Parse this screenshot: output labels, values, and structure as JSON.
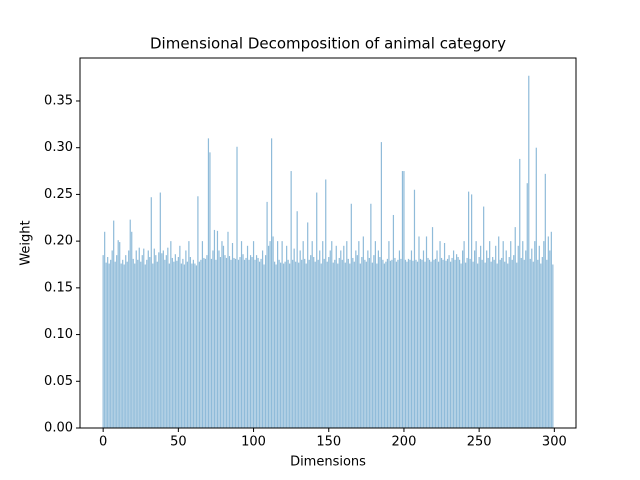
{
  "chart_data": {
    "type": "bar",
    "title": "Dimensional Decomposition of animal category",
    "xlabel": "Dimensions",
    "ylabel": "Weight",
    "color": "#8fbbd9",
    "bar_width": 0.8,
    "x": [
      0,
      1,
      2,
      3,
      4,
      5,
      6,
      7,
      8,
      9,
      10,
      11,
      12,
      13,
      14,
      15,
      16,
      17,
      18,
      19,
      20,
      21,
      22,
      23,
      24,
      25,
      26,
      27,
      28,
      29,
      30,
      31,
      32,
      33,
      34,
      35,
      36,
      37,
      38,
      39,
      40,
      41,
      42,
      43,
      44,
      45,
      46,
      47,
      48,
      49,
      50,
      51,
      52,
      53,
      54,
      55,
      56,
      57,
      58,
      59,
      60,
      61,
      62,
      63,
      64,
      65,
      66,
      67,
      68,
      69,
      70,
      71,
      72,
      73,
      74,
      75,
      76,
      77,
      78,
      79,
      80,
      81,
      82,
      83,
      84,
      85,
      86,
      87,
      88,
      89,
      90,
      91,
      92,
      93,
      94,
      95,
      96,
      97,
      98,
      99,
      100,
      101,
      102,
      103,
      104,
      105,
      106,
      107,
      108,
      109,
      110,
      111,
      112,
      113,
      114,
      115,
      116,
      117,
      118,
      119,
      120,
      121,
      122,
      123,
      124,
      125,
      126,
      127,
      128,
      129,
      130,
      131,
      132,
      133,
      134,
      135,
      136,
      137,
      138,
      139,
      140,
      141,
      142,
      143,
      144,
      145,
      146,
      147,
      148,
      149,
      150,
      151,
      152,
      153,
      154,
      155,
      156,
      157,
      158,
      159,
      160,
      161,
      162,
      163,
      164,
      165,
      166,
      167,
      168,
      169,
      170,
      171,
      172,
      173,
      174,
      175,
      176,
      177,
      178,
      179,
      180,
      181,
      182,
      183,
      184,
      185,
      186,
      187,
      188,
      189,
      190,
      191,
      192,
      193,
      194,
      195,
      196,
      197,
      198,
      199,
      200,
      201,
      202,
      203,
      204,
      205,
      206,
      207,
      208,
      209,
      210,
      211,
      212,
      213,
      214,
      215,
      216,
      217,
      218,
      219,
      220,
      221,
      222,
      223,
      224,
      225,
      226,
      227,
      228,
      229,
      230,
      231,
      232,
      233,
      234,
      235,
      236,
      237,
      238,
      239,
      240,
      241,
      242,
      243,
      244,
      245,
      246,
      247,
      248,
      249,
      250,
      251,
      252,
      253,
      254,
      255,
      256,
      257,
      258,
      259,
      260,
      261,
      262,
      263,
      264,
      265,
      266,
      267,
      268,
      269,
      270,
      271,
      272,
      273,
      274,
      275,
      276,
      277,
      278,
      279,
      280,
      281,
      282,
      283,
      284,
      285,
      286,
      287,
      288,
      289,
      290,
      291,
      292,
      293,
      294,
      295,
      296,
      297,
      298,
      299
    ],
    "values": [
      0.185,
      0.21,
      0.177,
      0.183,
      0.176,
      0.18,
      0.19,
      0.222,
      0.178,
      0.185,
      0.201,
      0.199,
      0.176,
      0.18,
      0.175,
      0.185,
      0.178,
      0.19,
      0.223,
      0.21,
      0.181,
      0.176,
      0.19,
      0.18,
      0.193,
      0.178,
      0.185,
      0.192,
      0.175,
      0.18,
      0.19,
      0.183,
      0.247,
      0.176,
      0.192,
      0.185,
      0.178,
      0.188,
      0.252,
      0.187,
      0.19,
      0.18,
      0.185,
      0.193,
      0.176,
      0.2,
      0.182,
      0.178,
      0.186,
      0.179,
      0.183,
      0.195,
      0.176,
      0.181,
      0.175,
      0.19,
      0.178,
      0.2,
      0.183,
      0.176,
      0.18,
      0.176,
      0.174,
      0.248,
      0.178,
      0.18,
      0.2,
      0.182,
      0.181,
      0.185,
      0.31,
      0.295,
      0.181,
      0.19,
      0.212,
      0.18,
      0.211,
      0.19,
      0.183,
      0.2,
      0.195,
      0.185,
      0.182,
      0.21,
      0.184,
      0.18,
      0.198,
      0.182,
      0.181,
      0.301,
      0.18,
      0.183,
      0.2,
      0.186,
      0.18,
      0.182,
      0.195,
      0.18,
      0.185,
      0.183,
      0.2,
      0.18,
      0.185,
      0.182,
      0.178,
      0.181,
      0.19,
      0.175,
      0.185,
      0.242,
      0.195,
      0.2,
      0.31,
      0.205,
      0.178,
      0.175,
      0.2,
      0.18,
      0.177,
      0.2,
      0.176,
      0.178,
      0.195,
      0.18,
      0.176,
      0.275,
      0.18,
      0.192,
      0.178,
      0.232,
      0.177,
      0.19,
      0.18,
      0.2,
      0.181,
      0.176,
      0.22,
      0.18,
      0.185,
      0.2,
      0.183,
      0.178,
      0.252,
      0.18,
      0.19,
      0.176,
      0.2,
      0.181,
      0.266,
      0.178,
      0.183,
      0.19,
      0.2,
      0.177,
      0.18,
      0.195,
      0.176,
      0.182,
      0.19,
      0.18,
      0.195,
      0.177,
      0.2,
      0.181,
      0.176,
      0.24,
      0.182,
      0.178,
      0.19,
      0.185,
      0.2,
      0.176,
      0.183,
      0.205,
      0.18,
      0.178,
      0.19,
      0.182,
      0.24,
      0.177,
      0.185,
      0.2,
      0.176,
      0.19,
      0.183,
      0.306,
      0.18,
      0.176,
      0.178,
      0.181,
      0.2,
      0.179,
      0.18,
      0.228,
      0.182,
      0.178,
      0.18,
      0.19,
      0.181,
      0.275,
      0.275,
      0.18,
      0.178,
      0.181,
      0.18,
      0.19,
      0.179,
      0.255,
      0.18,
      0.178,
      0.205,
      0.181,
      0.18,
      0.19,
      0.178,
      0.205,
      0.182,
      0.18,
      0.178,
      0.215,
      0.18,
      0.181,
      0.19,
      0.178,
      0.2,
      0.182,
      0.18,
      0.198,
      0.179,
      0.181,
      0.185,
      0.178,
      0.182,
      0.19,
      0.18,
      0.186,
      0.183,
      0.18,
      0.176,
      0.19,
      0.2,
      0.177,
      0.182,
      0.253,
      0.181,
      0.25,
      0.178,
      0.19,
      0.2,
      0.176,
      0.183,
      0.195,
      0.18,
      0.237,
      0.177,
      0.19,
      0.182,
      0.2,
      0.178,
      0.183,
      0.18,
      0.195,
      0.176,
      0.205,
      0.18,
      0.182,
      0.2,
      0.178,
      0.19,
      0.176,
      0.183,
      0.2,
      0.18,
      0.185,
      0.215,
      0.177,
      0.195,
      0.288,
      0.182,
      0.2,
      0.18,
      0.19,
      0.262,
      0.377,
      0.181,
      0.192,
      0.178,
      0.2,
      0.3,
      0.18,
      0.195,
      0.176,
      0.183,
      0.2,
      0.272,
      0.18,
      0.205,
      0.19,
      0.21,
      0.175
    ],
    "xlim": [
      -15.4,
      314.4
    ],
    "xticks": [
      0,
      50,
      100,
      150,
      200,
      250,
      300
    ],
    "ylim": [
      0,
      0.396
    ],
    "yticks": [
      {
        "value": 0,
        "label": "0.00"
      },
      {
        "value": 0.05,
        "label": "0.05"
      },
      {
        "value": 0.1,
        "label": "0.10"
      },
      {
        "value": 0.15,
        "label": "0.15"
      },
      {
        "value": 0.2,
        "label": "0.20"
      },
      {
        "value": 0.25,
        "label": "0.25"
      },
      {
        "value": 0.3,
        "label": "0.30"
      },
      {
        "value": 0.35,
        "label": "0.35"
      }
    ]
  }
}
